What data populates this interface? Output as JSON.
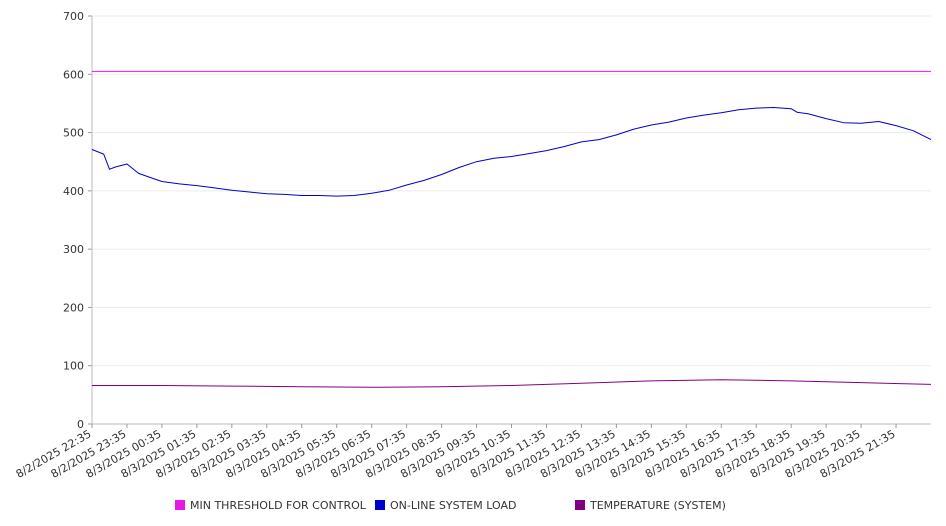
{
  "chart_data": {
    "type": "line",
    "x_ticks": [
      "8/2/2025 22:35",
      "8/2/2025 23:35",
      "8/3/2025 00:35",
      "8/3/2025 01:35",
      "8/3/2025 02:35",
      "8/3/2025 03:35",
      "8/3/2025 04:35",
      "8/3/2025 05:35",
      "8/3/2025 06:35",
      "8/3/2025 07:35",
      "8/3/2025 08:35",
      "8/3/2025 09:35",
      "8/3/2025 10:35",
      "8/3/2025 11:35",
      "8/3/2025 12:35",
      "8/3/2025 13:35",
      "8/3/2025 14:35",
      "8/3/2025 15:35",
      "8/3/2025 16:35",
      "8/3/2025 17:35",
      "8/3/2025 18:35",
      "8/3/2025 19:35",
      "8/3/2025 20:35",
      "8/3/2025 21:35"
    ],
    "y_ticks": [
      0,
      100,
      200,
      300,
      400,
      500,
      600,
      700
    ],
    "ylim": [
      0,
      700
    ],
    "grid": "horizontal",
    "legend_position": "bottom",
    "series": [
      {
        "name": "MIN THRESHOLD FOR CONTROL",
        "color": "#e619e6",
        "x": [
          "8/2/2025 22:35",
          "8/3/2025 22:35"
        ],
        "values": [
          605,
          605
        ]
      },
      {
        "name": "ON-LINE SYSTEM LOAD",
        "color": "#0000cc",
        "x": [
          "8/2/2025 22:35",
          "8/2/2025 22:55",
          "8/2/2025 23:05",
          "8/2/2025 23:15",
          "8/2/2025 23:35",
          "8/2/2025 23:55",
          "8/3/2025 00:15",
          "8/3/2025 00:35",
          "8/3/2025 01:05",
          "8/3/2025 01:35",
          "8/3/2025 02:05",
          "8/3/2025 02:35",
          "8/3/2025 03:05",
          "8/3/2025 03:35",
          "8/3/2025 04:05",
          "8/3/2025 04:35",
          "8/3/2025 05:05",
          "8/3/2025 05:35",
          "8/3/2025 06:05",
          "8/3/2025 06:35",
          "8/3/2025 07:05",
          "8/3/2025 07:35",
          "8/3/2025 08:05",
          "8/3/2025 08:35",
          "8/3/2025 09:05",
          "8/3/2025 09:35",
          "8/3/2025 10:05",
          "8/3/2025 10:35",
          "8/3/2025 11:05",
          "8/3/2025 11:35",
          "8/3/2025 12:05",
          "8/3/2025 12:35",
          "8/3/2025 13:05",
          "8/3/2025 13:35",
          "8/3/2025 14:05",
          "8/3/2025 14:35",
          "8/3/2025 15:05",
          "8/3/2025 15:35",
          "8/3/2025 16:05",
          "8/3/2025 16:35",
          "8/3/2025 17:05",
          "8/3/2025 17:35",
          "8/3/2025 18:05",
          "8/3/2025 18:35",
          "8/3/2025 18:45",
          "8/3/2025 19:05",
          "8/3/2025 19:35",
          "8/3/2025 20:05",
          "8/3/2025 20:35",
          "8/3/2025 21:05",
          "8/3/2025 21:35",
          "8/3/2025 22:05",
          "8/3/2025 22:35"
        ],
        "values": [
          471,
          463,
          437,
          441,
          446,
          430,
          423,
          416,
          412,
          409,
          405,
          401,
          398,
          395,
          394,
          392,
          392,
          391,
          392,
          396,
          401,
          410,
          418,
          428,
          440,
          450,
          456,
          459,
          464,
          469,
          476,
          484,
          488,
          496,
          506,
          513,
          518,
          525,
          530,
          534,
          539,
          542,
          543,
          541,
          535,
          532,
          524,
          517,
          516,
          519,
          512,
          503,
          488
        ]
      },
      {
        "name": "TEMPERATURE (SYSTEM)",
        "color": "#800080",
        "x": [
          "8/2/2025 22:35",
          "8/3/2025 00:35",
          "8/3/2025 02:35",
          "8/3/2025 04:35",
          "8/3/2025 06:35",
          "8/3/2025 08:35",
          "8/3/2025 10:35",
          "8/3/2025 12:35",
          "8/3/2025 14:35",
          "8/3/2025 16:35",
          "8/3/2025 18:35",
          "8/3/2025 20:35",
          "8/3/2025 22:35"
        ],
        "values": [
          66,
          66,
          65,
          64,
          63,
          64,
          66,
          70,
          74,
          76,
          74,
          71,
          68
        ]
      }
    ]
  }
}
